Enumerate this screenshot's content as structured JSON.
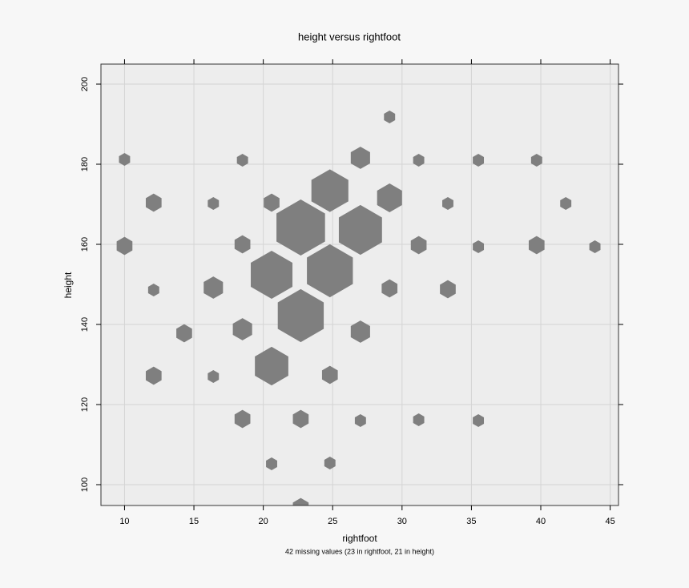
{
  "chart_data": {
    "type": "hexbin",
    "title": "height versus rightfoot",
    "x_label": "rightfoot",
    "y_label": "height",
    "subtitle": "42 missing values (23 in rightfoot, 21 in height)",
    "color": "#7f7f7f",
    "grid": true,
    "xlim": [
      8.3,
      45.6
    ],
    "ylim": [
      94.8,
      205
    ],
    "xticks": [
      10,
      15,
      20,
      25,
      30,
      35,
      40,
      45
    ],
    "yticks": [
      100,
      120,
      140,
      160,
      180,
      200
    ],
    "x": [
      10,
      10,
      12.1,
      12.1,
      12.1,
      14.3,
      16.4,
      16.4,
      16.4,
      18.5,
      18.5,
      18.5,
      18.5,
      20.6,
      20.6,
      20.6,
      20.6,
      22.7,
      22.7,
      22.7,
      22.7,
      24.8,
      24.8,
      24.8,
      24.8,
      27,
      27,
      27,
      27,
      29.1,
      29.1,
      29.1,
      31.2,
      31.2,
      31.2,
      33.3,
      33.3,
      35.5,
      35.5,
      35.5,
      39.7,
      39.7,
      41.8,
      43.9
    ],
    "y": [
      181.2,
      159.6,
      170.4,
      148.6,
      127.2,
      137.8,
      170.2,
      149.2,
      127,
      181,
      160,
      138.8,
      116.4,
      170.4,
      152.4,
      129.6,
      105.2,
      164.2,
      142.2,
      116.4,
      94.4,
      173.4,
      153.4,
      127.4,
      105.4,
      181.6,
      163.6,
      138.2,
      116,
      191.8,
      171.6,
      149,
      181,
      159.8,
      116.2,
      170.2,
      148.8,
      181,
      159.4,
      116,
      181,
      159.8,
      170.2,
      159.4
    ],
    "counts": [
      1,
      2,
      2,
      1,
      2,
      2,
      1,
      3,
      1,
      1,
      2,
      3,
      2,
      2,
      14,
      9,
      1,
      19,
      17,
      2,
      2,
      11,
      17,
      2,
      1,
      3,
      15,
      3,
      1,
      1,
      5,
      2,
      1,
      2,
      1,
      1,
      2,
      1,
      1,
      1,
      1,
      2,
      1,
      1
    ]
  }
}
